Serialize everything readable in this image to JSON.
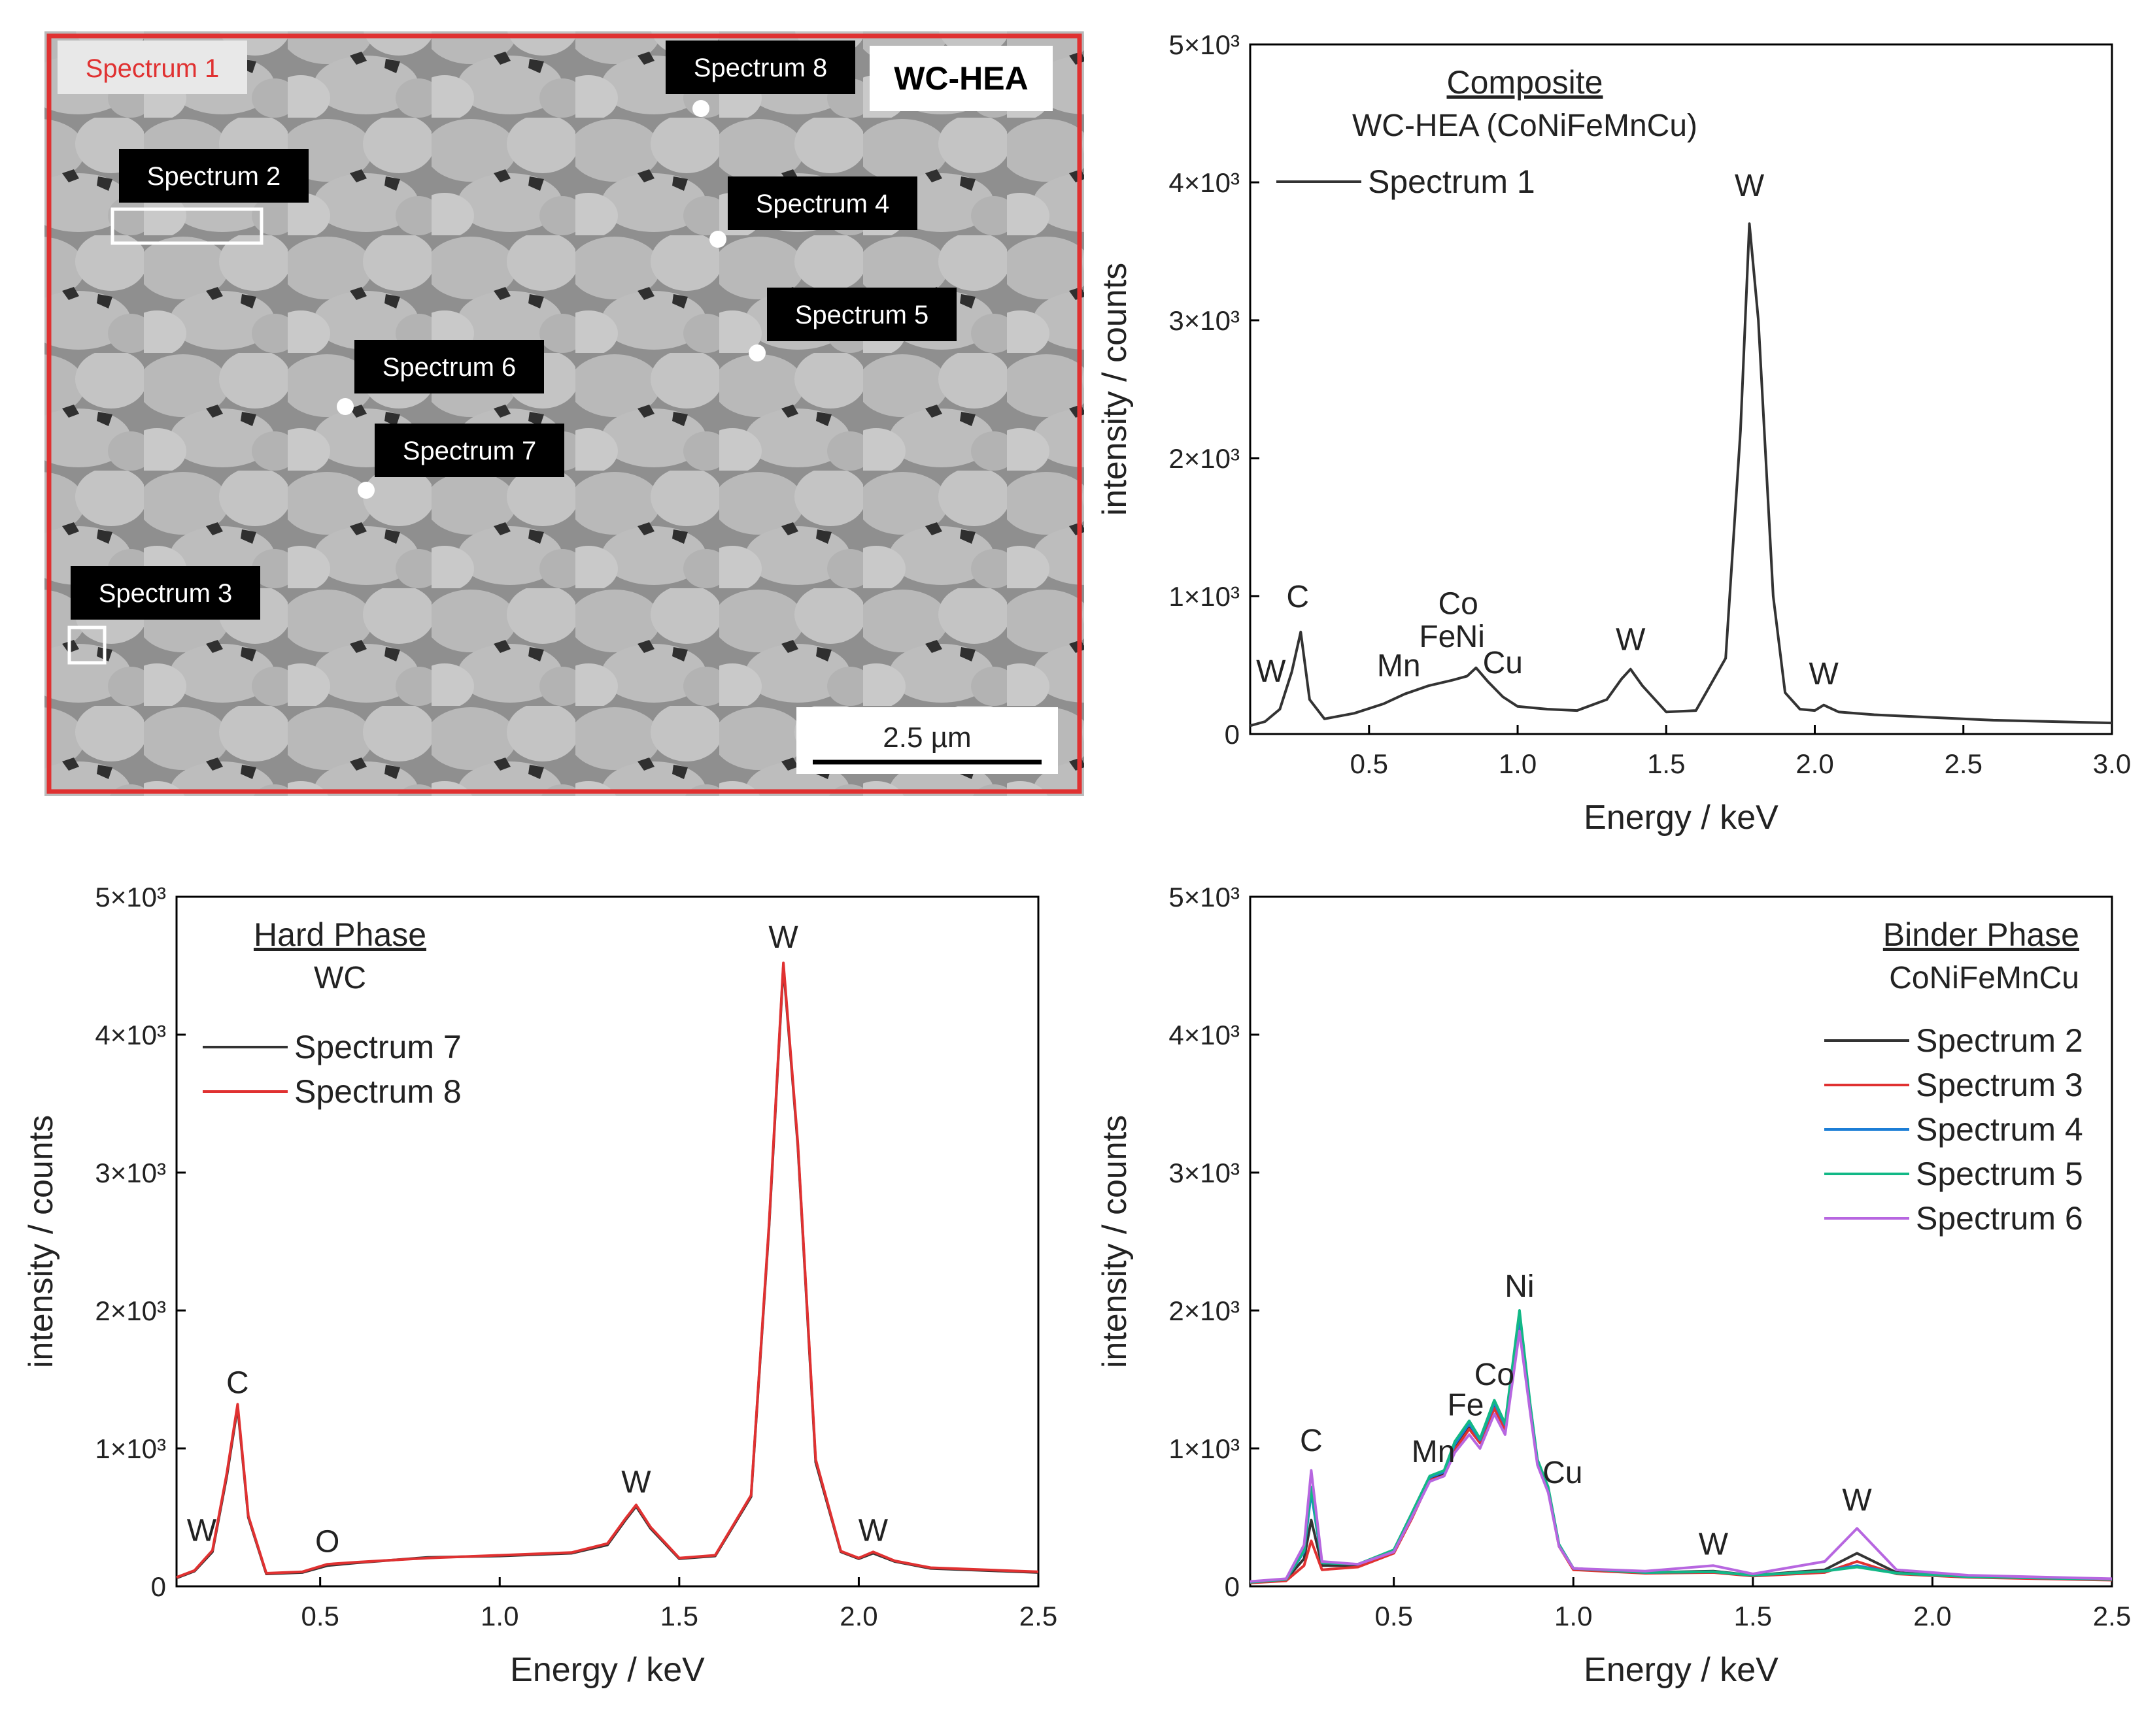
{
  "micrograph": {
    "title": "WC-HEA",
    "scale_bar": "2.5 µm",
    "labels": [
      {
        "id": "s1",
        "text": "Spectrum 1",
        "marker": "area",
        "style": "red"
      },
      {
        "id": "s2",
        "text": "Spectrum 2",
        "marker": "box"
      },
      {
        "id": "s3",
        "text": "Spectrum 3",
        "marker": "box"
      },
      {
        "id": "s4",
        "text": "Spectrum 4",
        "marker": "dot"
      },
      {
        "id": "s5",
        "text": "Spectrum 5",
        "marker": "dot"
      },
      {
        "id": "s6",
        "text": "Spectrum 6",
        "marker": "dot"
      },
      {
        "id": "s7",
        "text": "Spectrum 7",
        "marker": "dot"
      },
      {
        "id": "s8",
        "text": "Spectrum 8",
        "marker": "dot"
      }
    ]
  },
  "chart_data": [
    {
      "type": "line",
      "panel": "composite",
      "heading": "Composite",
      "subheading": "WC-HEA (CoNiFeMnCu)",
      "xlabel": "Energy / keV",
      "ylabel": "intensity / counts",
      "xlim": [
        0.1,
        3.0
      ],
      "ylim": [
        0,
        5000
      ],
      "xticks": [
        0.5,
        1.0,
        1.5,
        2.0,
        2.5,
        3.0
      ],
      "xtick_labels": [
        "0.5",
        "1.0",
        "1.5",
        "2.0",
        "2.5",
        "3.0"
      ],
      "yticks": [
        0,
        1000,
        2000,
        3000,
        4000,
        5000
      ],
      "ytick_labels": [
        "0",
        "1×10³",
        "2×10³",
        "3×10³",
        "4×10³",
        "5×10³"
      ],
      "legend_position": "top-left",
      "series": [
        {
          "name": "Spectrum 1",
          "color": "#333333",
          "x": [
            0.1,
            0.15,
            0.2,
            0.24,
            0.27,
            0.3,
            0.35,
            0.45,
            0.55,
            0.62,
            0.7,
            0.78,
            0.83,
            0.86,
            0.9,
            0.95,
            1.0,
            1.1,
            1.2,
            1.3,
            1.35,
            1.38,
            1.42,
            1.5,
            1.6,
            1.7,
            1.75,
            1.78,
            1.81,
            1.86,
            1.9,
            1.95,
            2.0,
            2.03,
            2.08,
            2.2,
            2.4,
            2.6,
            2.8,
            3.0
          ],
          "y": [
            60,
            90,
            180,
            450,
            740,
            250,
            110,
            150,
            220,
            290,
            350,
            390,
            420,
            480,
            380,
            270,
            200,
            180,
            170,
            250,
            400,
            470,
            350,
            160,
            170,
            550,
            2200,
            3700,
            3000,
            1000,
            300,
            180,
            170,
            210,
            160,
            140,
            120,
            100,
            90,
            80
          ]
        }
      ],
      "annotations": [
        {
          "text": "W",
          "x": 0.17,
          "y": 380
        },
        {
          "text": "C",
          "x": 0.26,
          "y": 920
        },
        {
          "text": "Mn",
          "x": 0.6,
          "y": 420
        },
        {
          "text": "Fe",
          "x": 0.73,
          "y": 630
        },
        {
          "text": "Co",
          "x": 0.8,
          "y": 870
        },
        {
          "text": "Ni",
          "x": 0.84,
          "y": 630
        },
        {
          "text": "Cu",
          "x": 0.95,
          "y": 440
        },
        {
          "text": "W",
          "x": 1.38,
          "y": 610
        },
        {
          "text": "W",
          "x": 1.78,
          "y": 3900
        },
        {
          "text": "W",
          "x": 2.03,
          "y": 360
        }
      ]
    },
    {
      "type": "line",
      "panel": "hard-phase",
      "heading": "Hard Phase",
      "subheading": "WC",
      "xlabel": "Energy / keV",
      "ylabel": "intensity / counts",
      "xlim": [
        0.1,
        2.5
      ],
      "ylim": [
        0,
        5000
      ],
      "xticks": [
        0.5,
        1.0,
        1.5,
        2.0,
        2.5
      ],
      "xtick_labels": [
        "0.5",
        "1.0",
        "1.5",
        "2.0",
        "2.5"
      ],
      "yticks": [
        0,
        1000,
        2000,
        3000,
        4000,
        5000
      ],
      "ytick_labels": [
        "0",
        "1×10³",
        "2×10³",
        "3×10³",
        "4×10³",
        "5×10³"
      ],
      "legend_position": "top-left",
      "series": [
        {
          "name": "Spectrum 7",
          "color": "#333333",
          "x": [
            0.1,
            0.15,
            0.2,
            0.24,
            0.27,
            0.3,
            0.35,
            0.45,
            0.52,
            0.6,
            0.8,
            1.0,
            1.2,
            1.3,
            1.35,
            1.38,
            1.42,
            1.5,
            1.6,
            1.7,
            1.75,
            1.79,
            1.83,
            1.88,
            1.95,
            2.0,
            2.04,
            2.1,
            2.2,
            2.4,
            2.5
          ],
          "y": [
            60,
            110,
            250,
            800,
            1300,
            500,
            90,
            100,
            150,
            170,
            210,
            220,
            240,
            300,
            480,
            580,
            420,
            200,
            220,
            650,
            2600,
            4500,
            3200,
            900,
            250,
            200,
            240,
            180,
            130,
            110,
            100
          ]
        },
        {
          "name": "Spectrum 8",
          "color": "#e03131",
          "x": [
            0.1,
            0.15,
            0.2,
            0.24,
            0.27,
            0.3,
            0.35,
            0.45,
            0.52,
            0.6,
            0.8,
            1.0,
            1.2,
            1.3,
            1.35,
            1.38,
            1.42,
            1.5,
            1.6,
            1.7,
            1.75,
            1.79,
            1.83,
            1.88,
            1.95,
            2.0,
            2.04,
            2.1,
            2.2,
            2.4,
            2.5
          ],
          "y": [
            65,
            115,
            260,
            820,
            1320,
            510,
            95,
            105,
            160,
            175,
            205,
            225,
            245,
            310,
            490,
            590,
            430,
            205,
            225,
            660,
            2620,
            4520,
            3220,
            920,
            255,
            205,
            250,
            185,
            135,
            115,
            105
          ]
        }
      ],
      "annotations": [
        {
          "text": "W",
          "x": 0.17,
          "y": 330
        },
        {
          "text": "C",
          "x": 0.27,
          "y": 1400
        },
        {
          "text": "O",
          "x": 0.52,
          "y": 250
        },
        {
          "text": "W",
          "x": 1.38,
          "y": 680
        },
        {
          "text": "W",
          "x": 1.79,
          "y": 4630
        },
        {
          "text": "W",
          "x": 2.04,
          "y": 330
        }
      ]
    },
    {
      "type": "line",
      "panel": "binder-phase",
      "heading": "Binder Phase",
      "subheading": "CoNiFeMnCu",
      "xlabel": "Energy / keV",
      "ylabel": "intensity / counts",
      "xlim": [
        0.1,
        2.5
      ],
      "ylim": [
        0,
        5000
      ],
      "xticks": [
        0.5,
        1.0,
        1.5,
        2.0,
        2.5
      ],
      "xtick_labels": [
        "0.5",
        "1.0",
        "1.5",
        "2.0",
        "2.5"
      ],
      "yticks": [
        0,
        1000,
        2000,
        3000,
        4000,
        5000
      ],
      "ytick_labels": [
        "0",
        "1×10³",
        "2×10³",
        "3×10³",
        "4×10³",
        "5×10³"
      ],
      "legend_position": "top-right",
      "series": [
        {
          "name": "Spectrum 2",
          "color": "#333333",
          "x": [
            0.1,
            0.2,
            0.25,
            0.27,
            0.3,
            0.4,
            0.5,
            0.55,
            0.6,
            0.64,
            0.67,
            0.71,
            0.74,
            0.78,
            0.81,
            0.85,
            0.88,
            0.9,
            0.93,
            0.96,
            1.0,
            1.2,
            1.39,
            1.5,
            1.7,
            1.79,
            1.9,
            2.1,
            2.5
          ],
          "y": [
            30,
            50,
            200,
            480,
            150,
            150,
            250,
            500,
            780,
            820,
            1000,
            1150,
            1050,
            1300,
            1150,
            1900,
            1300,
            900,
            700,
            300,
            130,
            100,
            110,
            80,
            120,
            240,
            100,
            70,
            50
          ]
        },
        {
          "name": "Spectrum 3",
          "color": "#e03131",
          "x": [
            0.1,
            0.2,
            0.25,
            0.27,
            0.3,
            0.4,
            0.5,
            0.55,
            0.6,
            0.64,
            0.67,
            0.71,
            0.74,
            0.78,
            0.81,
            0.85,
            0.88,
            0.9,
            0.93,
            0.96,
            1.0,
            1.2,
            1.39,
            1.5,
            1.7,
            1.79,
            1.9,
            2.1,
            2.5
          ],
          "y": [
            25,
            40,
            150,
            330,
            120,
            140,
            240,
            490,
            770,
            800,
            990,
            1140,
            1040,
            1290,
            1140,
            1880,
            1290,
            890,
            690,
            290,
            120,
            95,
            100,
            75,
            100,
            180,
            90,
            65,
            45
          ]
        },
        {
          "name": "Spectrum 4",
          "color": "#1c7ed6",
          "x": [
            0.1,
            0.2,
            0.25,
            0.27,
            0.3,
            0.4,
            0.5,
            0.55,
            0.6,
            0.64,
            0.67,
            0.71,
            0.74,
            0.78,
            0.81,
            0.85,
            0.88,
            0.9,
            0.93,
            0.96,
            1.0,
            1.2,
            1.39,
            1.5,
            1.7,
            1.79,
            1.9,
            2.1,
            2.5
          ],
          "y": [
            30,
            50,
            250,
            680,
            170,
            160,
            260,
            520,
            790,
            830,
            1030,
            1180,
            1060,
            1330,
            1170,
            1950,
            1310,
            910,
            710,
            300,
            130,
            100,
            105,
            80,
            110,
            150,
            95,
            70,
            50
          ]
        },
        {
          "name": "Spectrum 5",
          "color": "#12b886",
          "x": [
            0.1,
            0.2,
            0.25,
            0.27,
            0.3,
            0.4,
            0.5,
            0.55,
            0.6,
            0.64,
            0.67,
            0.71,
            0.74,
            0.78,
            0.81,
            0.85,
            0.88,
            0.9,
            0.93,
            0.96,
            1.0,
            1.2,
            1.39,
            1.5,
            1.7,
            1.79,
            1.9,
            2.1,
            2.5
          ],
          "y": [
            30,
            50,
            260,
            720,
            170,
            160,
            265,
            530,
            800,
            840,
            1050,
            1200,
            1070,
            1350,
            1180,
            2000,
            1320,
            920,
            720,
            305,
            130,
            100,
            105,
            80,
            110,
            140,
            95,
            70,
            50
          ]
        },
        {
          "name": "Spectrum 6",
          "color": "#b766e0",
          "x": [
            0.1,
            0.2,
            0.25,
            0.27,
            0.3,
            0.4,
            0.5,
            0.55,
            0.6,
            0.64,
            0.67,
            0.71,
            0.74,
            0.78,
            0.81,
            0.85,
            0.88,
            0.9,
            0.93,
            0.96,
            1.0,
            1.2,
            1.39,
            1.5,
            1.7,
            1.79,
            1.9,
            2.1,
            2.5
          ],
          "y": [
            35,
            55,
            300,
            840,
            180,
            160,
            250,
            500,
            760,
            800,
            970,
            1100,
            1000,
            1250,
            1100,
            1850,
            1260,
            880,
            680,
            290,
            130,
            110,
            150,
            90,
            180,
            420,
            120,
            80,
            55
          ]
        }
      ],
      "annotations": [
        {
          "text": "C",
          "x": 0.27,
          "y": 980
        },
        {
          "text": "Mn",
          "x": 0.61,
          "y": 900
        },
        {
          "text": "Fe",
          "x": 0.7,
          "y": 1240
        },
        {
          "text": "Co",
          "x": 0.78,
          "y": 1460
        },
        {
          "text": "Ni",
          "x": 0.85,
          "y": 2100
        },
        {
          "text": "Cu",
          "x": 0.97,
          "y": 750
        },
        {
          "text": "W",
          "x": 1.39,
          "y": 230
        },
        {
          "text": "W",
          "x": 1.79,
          "y": 550
        }
      ]
    }
  ]
}
